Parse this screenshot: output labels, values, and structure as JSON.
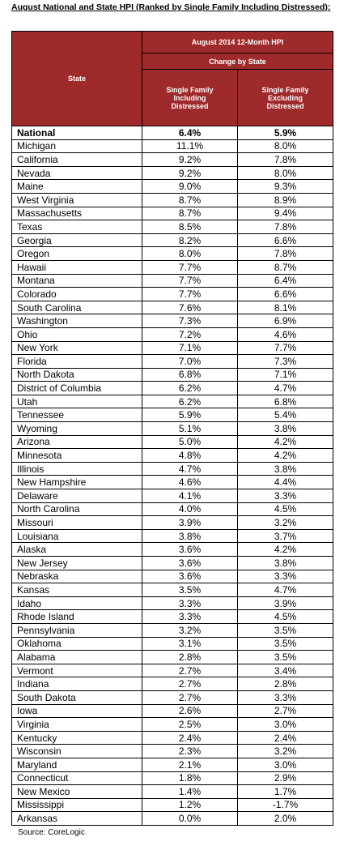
{
  "header": {
    "title": "August National and State HPI (Ranked by Single Family Including Distressed):"
  },
  "table": {
    "columns": {
      "state": "State",
      "group": "August 2014 12-Month HPI",
      "subgroup": "Change by State",
      "col1": "Single Family Including Distressed",
      "col2": "Single Family Excluding Distressed"
    },
    "rows": [
      [
        "National",
        "6.4%",
        "5.9%"
      ],
      [
        "Michigan",
        "11.1%",
        "8.0%"
      ],
      [
        "California",
        "9.2%",
        "7.8%"
      ],
      [
        "Nevada",
        "9.2%",
        "8.0%"
      ],
      [
        "Maine",
        "9.0%",
        "9.3%"
      ],
      [
        "West Virginia",
        "8.7%",
        "8.9%"
      ],
      [
        "Massachusetts",
        "8.7%",
        "9.4%"
      ],
      [
        "Texas",
        "8.5%",
        "7.8%"
      ],
      [
        "Georgia",
        "8.2%",
        "6.6%"
      ],
      [
        "Oregon",
        "8.0%",
        "7.8%"
      ],
      [
        "Hawaii",
        "7.7%",
        "8.7%"
      ],
      [
        "Montana",
        "7.7%",
        "6.4%"
      ],
      [
        "Colorado",
        "7.7%",
        "6.6%"
      ],
      [
        "South Carolina",
        "7.6%",
        "8.1%"
      ],
      [
        "Washington",
        "7.3%",
        "6.9%"
      ],
      [
        "Ohio",
        "7.2%",
        "4.6%"
      ],
      [
        "New York",
        "7.1%",
        "7.7%"
      ],
      [
        "Florida",
        "7.0%",
        "7.3%"
      ],
      [
        "North Dakota",
        "6.8%",
        "7.1%"
      ],
      [
        "District of Columbia",
        "6.2%",
        "4.7%"
      ],
      [
        "Utah",
        "6.2%",
        "6.8%"
      ],
      [
        "Tennessee",
        "5.9%",
        "5.4%"
      ],
      [
        "Wyoming",
        "5.1%",
        "3.8%"
      ],
      [
        "Arizona",
        "5.0%",
        "4.2%"
      ],
      [
        "Minnesota",
        "4.8%",
        "4.2%"
      ],
      [
        "Illinois",
        "4.7%",
        "3.8%"
      ],
      [
        "New Hampshire",
        "4.6%",
        "4.4%"
      ],
      [
        "Delaware",
        "4.1%",
        "3.3%"
      ],
      [
        "North Carolina",
        "4.0%",
        "4.5%"
      ],
      [
        "Missouri",
        "3.9%",
        "3.2%"
      ],
      [
        "Louisiana",
        "3.8%",
        "3.7%"
      ],
      [
        "Alaska",
        "3.6%",
        "4.2%"
      ],
      [
        "New Jersey",
        "3.6%",
        "3.8%"
      ],
      [
        "Nebraska",
        "3.6%",
        "3.3%"
      ],
      [
        "Kansas",
        "3.5%",
        "4.7%"
      ],
      [
        "Idaho",
        "3.3%",
        "3.9%"
      ],
      [
        "Rhode Island",
        "3.3%",
        "4.5%"
      ],
      [
        "Pennsylvania",
        "3.2%",
        "3.5%"
      ],
      [
        "Oklahoma",
        "3.1%",
        "3.5%"
      ],
      [
        "Alabama",
        "2.8%",
        "3.5%"
      ],
      [
        "Vermont",
        "2.7%",
        "3.4%"
      ],
      [
        "Indiana",
        "2.7%",
        "2.8%"
      ],
      [
        "South Dakota",
        "2.7%",
        "3.3%"
      ],
      [
        "Iowa",
        "2.6%",
        "2.7%"
      ],
      [
        "Virginia",
        "2.5%",
        "3.0%"
      ],
      [
        "Kentucky",
        "2.4%",
        "2.4%"
      ],
      [
        "Wisconsin",
        "2.3%",
        "3.2%"
      ],
      [
        "Maryland",
        "2.1%",
        "3.0%"
      ],
      [
        "Connecticut",
        "1.8%",
        "2.9%"
      ],
      [
        "New Mexico",
        "1.4%",
        "1.7%"
      ],
      [
        "Mississippi",
        "1.2%",
        "-1.7%"
      ],
      [
        "Arkansas",
        "0.0%",
        "2.0%"
      ]
    ]
  },
  "footer": {
    "source": "Source: CoreLogic"
  }
}
